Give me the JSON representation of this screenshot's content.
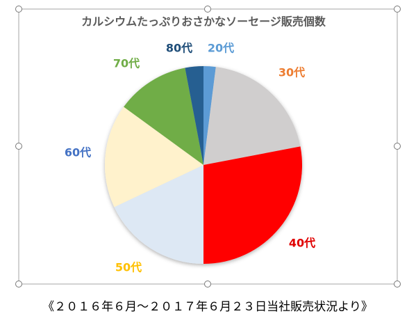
{
  "chart_data": {
    "type": "pie",
    "title": "カルシウムたっぷりおさかなソーセージ販売個数",
    "categories": [
      "20代",
      "30代",
      "40代",
      "50代",
      "60代",
      "70代",
      "80代"
    ],
    "values": [
      2,
      20,
      28,
      18,
      17,
      12,
      3
    ],
    "colors": [
      "#5b9bd5",
      "#d0cece",
      "#ff0000",
      "#dde8f4",
      "#fff2cc",
      "#70ad47",
      "#255e91"
    ],
    "label_colors": [
      "#5b9bd5",
      "#ed7d31",
      "#e00000",
      "#ffc000",
      "#4472c4",
      "#70ad47",
      "#1f4e79"
    ]
  },
  "caption": "《２０１６年６月～２０１７年６月２３日当社販売状況より》"
}
